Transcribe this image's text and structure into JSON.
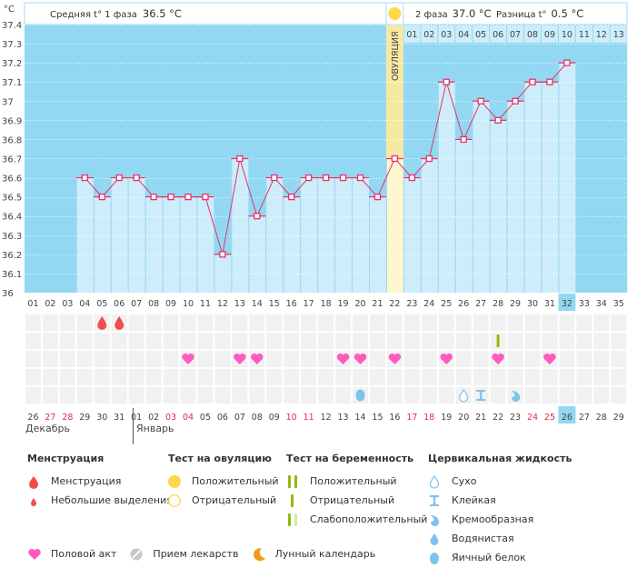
{
  "header": {
    "unit_label": "°C",
    "phase1_label": "Средняя t° 1 фаза",
    "phase1_value": "36.5 °C",
    "phase2_label": "2 фаза",
    "phase2_value": "37.0 °C",
    "diff_label": "Разница t°",
    "diff_value": "0.5 °C",
    "ovulation_label": "ОВУЛЯЦИЯ"
  },
  "colors": {
    "chart_bg": "#93d8f2",
    "bar_fill": "#cdedfb",
    "line": "#e8306a",
    "ovulation_band": "#f5e69a",
    "ovulation_bar": "#fdf6cf",
    "heart": "#ff5bbd",
    "blood": "#f24d4d",
    "test_green": "#8fba0e",
    "test_green_light": "#d5e8a8",
    "sun": "#ffd84a",
    "fluid_blue": "#7dc3ec",
    "today_highlight": "#93d8f2",
    "red_date": "#e0285a"
  },
  "chart_data": {
    "type": "line",
    "title": "",
    "xlabel": "",
    "ylabel": "°C",
    "ylim": [
      36,
      37.4
    ],
    "yticks": [
      "37.4",
      "37.3",
      "37.2",
      "37.1",
      "37",
      "36.9",
      "36.8",
      "36.7",
      "36.6",
      "36.5",
      "36.4",
      "36.3",
      "36.2",
      "36.1",
      "36"
    ],
    "grid": true,
    "cycle_days": [
      "01",
      "02",
      "03",
      "04",
      "05",
      "06",
      "07",
      "08",
      "09",
      "10",
      "11",
      "12",
      "13",
      "14",
      "15",
      "16",
      "17",
      "18",
      "19",
      "20",
      "21",
      "22",
      "23",
      "24",
      "25",
      "26",
      "27",
      "28",
      "29",
      "30",
      "31",
      "32",
      "33",
      "34",
      "35"
    ],
    "phase2_days": [
      "01",
      "02",
      "03",
      "04",
      "05",
      "06",
      "07",
      "08",
      "09",
      "10",
      "11",
      "12",
      "13"
    ],
    "calendar_dates": [
      "26",
      "27",
      "28",
      "29",
      "30",
      "31",
      "01",
      "02",
      "03",
      "04",
      "05",
      "06",
      "07",
      "08",
      "09",
      "10",
      "11",
      "12",
      "13",
      "14",
      "15",
      "16",
      "17",
      "18",
      "19",
      "20",
      "21",
      "22",
      "23",
      "24",
      "25",
      "26",
      "27",
      "28",
      "29"
    ],
    "red_dates_idx": [
      1,
      2,
      8,
      9,
      15,
      16,
      22,
      23,
      29,
      30
    ],
    "today_idx": 31,
    "months": [
      {
        "label": "Декабрь",
        "start_idx": 0
      },
      {
        "label": "Январь",
        "start_idx": 6
      }
    ],
    "ovulation_day_idx": 21,
    "series": [
      {
        "name": "Базальная температура",
        "values": [
          null,
          null,
          null,
          36.6,
          36.5,
          36.6,
          36.6,
          36.5,
          36.5,
          36.5,
          36.5,
          36.2,
          36.7,
          36.4,
          36.6,
          36.5,
          36.6,
          36.6,
          36.6,
          36.6,
          36.5,
          36.7,
          36.6,
          36.7,
          37.1,
          36.8,
          37.0,
          36.9,
          37.0,
          37.1,
          37.1,
          37.2,
          null,
          null,
          null
        ]
      }
    ],
    "markers": {
      "menstruation": [
        4,
        5
      ],
      "ovulation_test_positive": [],
      "pregnancy_test_negative": [
        27
      ],
      "intercourse": [
        9,
        12,
        13,
        18,
        19,
        21,
        24,
        27,
        30
      ],
      "medication": [],
      "cervical_fluid": [
        {
          "day_idx": 19,
          "type": "egg_white"
        },
        {
          "day_idx": 25,
          "type": "dry"
        },
        {
          "day_idx": 26,
          "type": "sticky"
        },
        {
          "day_idx": 28,
          "type": "creamy"
        }
      ]
    }
  },
  "legend": {
    "menstruation": {
      "title": "Менструация",
      "items": [
        "Менструация",
        "Небольшие выделения"
      ]
    },
    "ovulation_test": {
      "title": "Тест на овуляцию",
      "items": [
        "Положительный",
        "Отрицательный"
      ]
    },
    "pregnancy_test": {
      "title": "Тест на беременность",
      "items": [
        "Положительный",
        "Отрицательный",
        "Слабоположительный"
      ]
    },
    "cervical_fluid": {
      "title": "Цервикальная жидкость",
      "items": [
        "Сухо",
        "Клейкая",
        "Кремообразная",
        "Водянистая",
        "Яичный белок"
      ]
    },
    "other": {
      "items": [
        "Половой акт",
        "Прием лекарств",
        "Лунный календарь"
      ]
    }
  }
}
